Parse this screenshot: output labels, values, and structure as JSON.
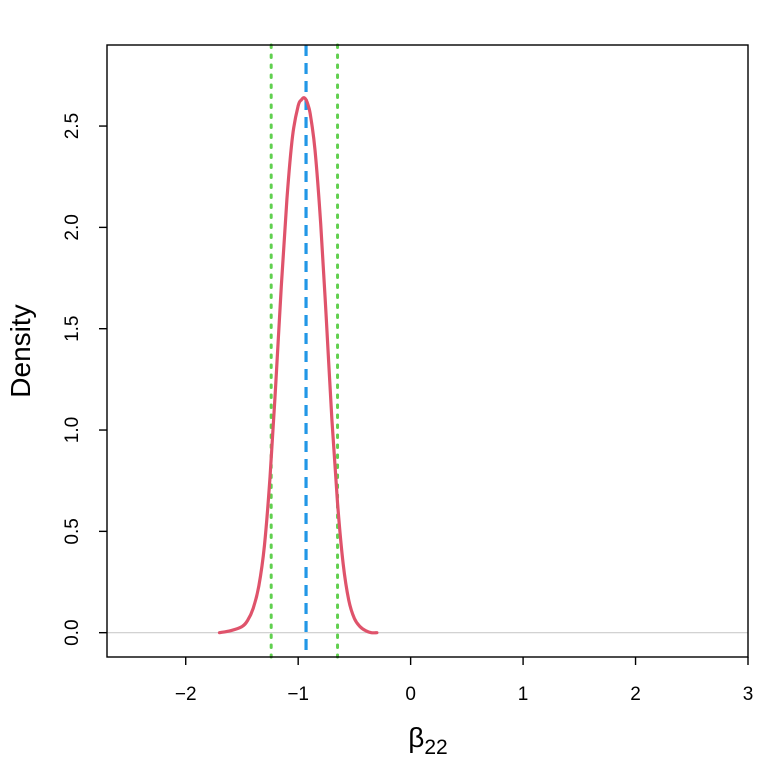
{
  "chart_data": {
    "type": "line",
    "title": "",
    "xlabel": {
      "symbol": "β",
      "subscript": "22"
    },
    "ylabel": "Density",
    "xlim": [
      -2.7,
      3.0
    ],
    "ylim": [
      -0.12,
      2.9
    ],
    "x_ticks": [
      {
        "value": -2,
        "label": "−2"
      },
      {
        "value": -1,
        "label": "−1"
      },
      {
        "value": 0,
        "label": "0"
      },
      {
        "value": 1,
        "label": "1"
      },
      {
        "value": 2,
        "label": "2"
      },
      {
        "value": 3,
        "label": "3"
      }
    ],
    "y_ticks": [
      {
        "value": 0.0,
        "label": "0.0"
      },
      {
        "value": 0.5,
        "label": "0.5"
      },
      {
        "value": 1.0,
        "label": "1.0"
      },
      {
        "value": 1.5,
        "label": "1.5"
      },
      {
        "value": 2.0,
        "label": "2.0"
      },
      {
        "value": 2.5,
        "label": "2.5"
      }
    ],
    "grid": false,
    "reference_line": {
      "y": 0,
      "color": "#cccccc"
    },
    "series": [
      {
        "kind": "density",
        "color": "#df536b",
        "x": [
          -1.7,
          -1.6,
          -1.5,
          -1.45,
          -1.4,
          -1.35,
          -1.3,
          -1.25,
          -1.2,
          -1.15,
          -1.1,
          -1.05,
          -1.0,
          -0.97,
          -0.95,
          -0.93,
          -0.91,
          -0.89,
          -0.85,
          -0.8,
          -0.75,
          -0.7,
          -0.65,
          -0.6,
          -0.55,
          -0.5,
          -0.45,
          -0.4,
          -0.35,
          -0.3
        ],
        "y": [
          0.0,
          0.01,
          0.03,
          0.06,
          0.12,
          0.23,
          0.43,
          0.77,
          1.22,
          1.71,
          2.14,
          2.45,
          2.6,
          2.63,
          2.64,
          2.63,
          2.6,
          2.55,
          2.38,
          2.02,
          1.55,
          1.05,
          0.64,
          0.34,
          0.16,
          0.07,
          0.03,
          0.01,
          0.0,
          0.0
        ]
      }
    ],
    "vertical_lines": [
      {
        "role": "point-estimate",
        "x": -0.93,
        "color": "#2297e6",
        "style": "dashed"
      },
      {
        "role": "interval-lower",
        "x": -1.24,
        "color": "#61d04f",
        "style": "dotted"
      },
      {
        "role": "interval-upper",
        "x": -0.65,
        "color": "#61d04f",
        "style": "dotted"
      }
    ]
  }
}
